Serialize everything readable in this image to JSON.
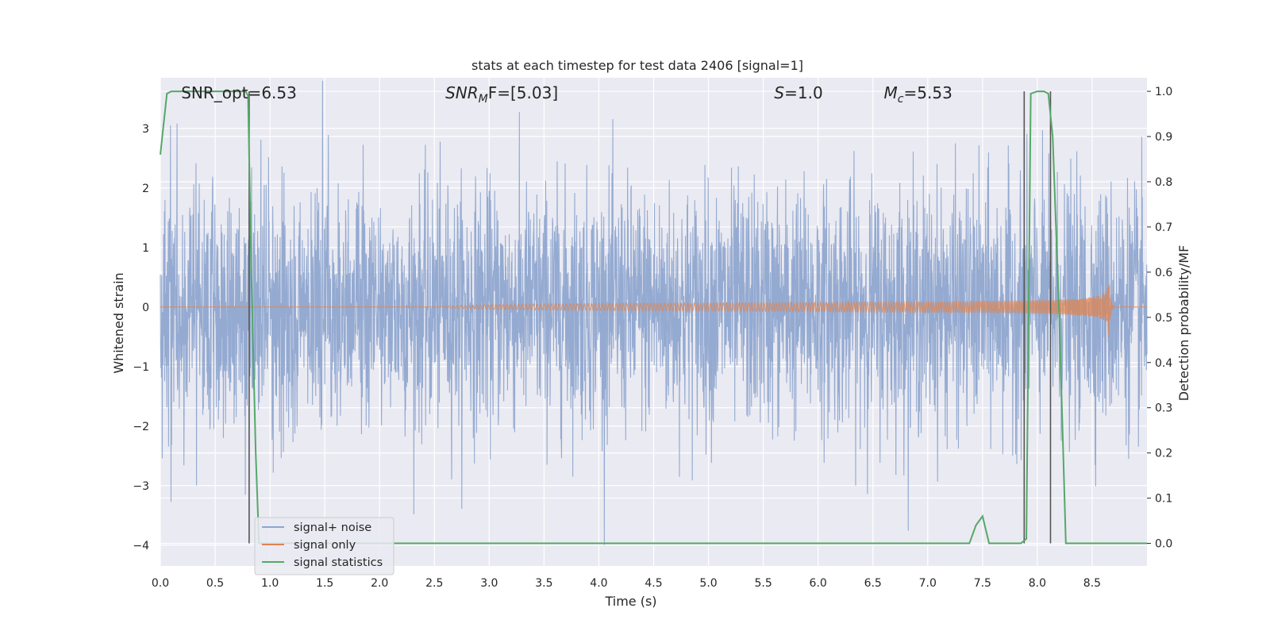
{
  "chart_data": {
    "type": "line",
    "title": "stats at each timestep for test data 2406 [signal=1]",
    "xlabel": "Time (s)",
    "ylabel_left": "Whitened strain",
    "ylabel_right": "Detection probability/MF",
    "xlim": [
      0.0,
      9.0
    ],
    "ylim_left": [
      -4.35,
      3.85
    ],
    "ylim_right": [
      -0.05,
      1.03
    ],
    "xticks": [
      "0.0",
      "0.5",
      "1.0",
      "1.5",
      "2.0",
      "2.5",
      "3.0",
      "3.5",
      "4.0",
      "4.5",
      "5.0",
      "5.5",
      "6.0",
      "6.5",
      "7.0",
      "7.5",
      "8.0",
      "8.5"
    ],
    "yticks_left": [
      "3",
      "2",
      "1",
      "0",
      "−1",
      "−2",
      "−3",
      "−4"
    ],
    "yticks_right": [
      "1.0",
      "0.9",
      "0.8",
      "0.7",
      "0.6",
      "0.5",
      "0.4",
      "0.3",
      "0.2",
      "0.1",
      "0.0"
    ],
    "grid": true,
    "annotations": [
      {
        "label": "SNR_opt=6.53",
        "x": 0.19
      },
      {
        "label_base": "SNR",
        "label_sub": "M",
        "label_rest": "F=[5.03]",
        "x": 2.6
      },
      {
        "label_base": "S",
        "label_rest": "=1.0",
        "x": 5.6
      },
      {
        "label_base": "M",
        "label_sub": "c",
        "label_rest": "=5.53",
        "x": 6.6
      }
    ],
    "legend": {
      "placement": "lower-left",
      "entries": [
        {
          "name": "signal+ noise",
          "color": "#8fa6cf"
        },
        {
          "name": "signal only",
          "color": "#dd8452"
        },
        {
          "name": "signal statistics",
          "color": "#55a868"
        }
      ]
    },
    "series": [
      {
        "name": "signal+ noise",
        "axis": "left",
        "kind": "noise",
        "color": "#8fa6cf",
        "typical_amplitude": 1.0,
        "max_abs": 4.0
      },
      {
        "name": "signal only",
        "axis": "left",
        "kind": "chirp",
        "color": "#dd8452",
        "start_time": 2.5,
        "merger_time": 8.65,
        "peak_amplitude": 0.72
      },
      {
        "name": "signal statistics",
        "axis": "right",
        "kind": "line",
        "color": "#55a868",
        "x": [
          0.0,
          0.06,
          0.1,
          0.2,
          0.4,
          0.6,
          0.7,
          0.78,
          0.8,
          0.83,
          0.87,
          0.9,
          1.0,
          2.0,
          4.0,
          6.0,
          7.0,
          7.38,
          7.44,
          7.5,
          7.56,
          7.85,
          7.9,
          7.94,
          8.0,
          8.06,
          8.1,
          8.14,
          8.2,
          8.26,
          8.3,
          8.6,
          9.0
        ],
        "y": [
          0.86,
          0.995,
          1.0,
          1.0,
          1.0,
          1.0,
          1.0,
          1.0,
          0.99,
          0.6,
          0.2,
          0.0,
          0.0,
          0.0,
          0.0,
          0.0,
          0.0,
          0.0,
          0.04,
          0.06,
          0.0,
          0.0,
          0.01,
          0.995,
          1.0,
          1.0,
          0.995,
          0.9,
          0.5,
          0.0,
          0.0,
          0.0,
          0.0
        ]
      }
    ],
    "vertical_lines": [
      0.81,
      7.88,
      8.12
    ],
    "colors": {
      "background": "#eaeaf2",
      "grid": "#ffffff",
      "vline": "#555555"
    }
  }
}
